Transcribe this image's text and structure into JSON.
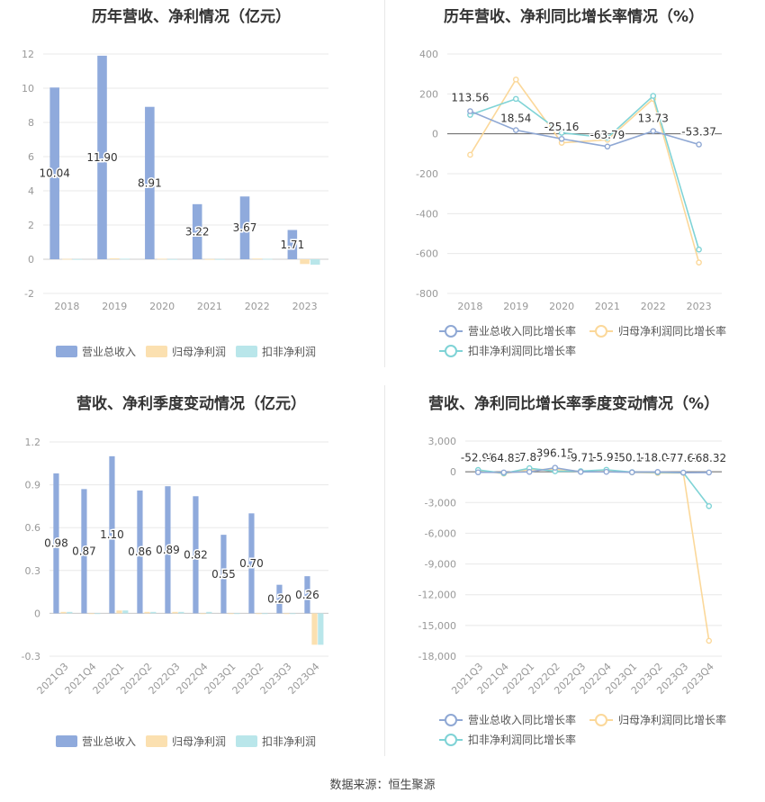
{
  "source_label": "数据来源：恒生聚源",
  "colors": {
    "revenue": "#8faadc",
    "net_profit": "#fbe0b0",
    "deducted_profit": "#b9e6ea",
    "revenue_line": "#8fa8d4",
    "net_profit_line": "#fbd89a",
    "deducted_line": "#7fd3d6",
    "axis_text": "#999999",
    "grid": "#e8e8e8"
  },
  "chart_data": [
    {
      "type": "bar",
      "title": "历年营收、净利情况（亿元）",
      "categories": [
        "2018",
        "2019",
        "2020",
        "2021",
        "2022",
        "2023"
      ],
      "ylim": [
        -2,
        12
      ],
      "yticks": [
        "12",
        "10",
        "8",
        "6",
        "4",
        "2",
        "0",
        "-2"
      ],
      "ytick_values": [
        12,
        10,
        8,
        6,
        4,
        2,
        0,
        -2
      ],
      "grid": true,
      "legend_position": "bottom",
      "series": [
        {
          "name": "营业总收入",
          "values": [
            10.04,
            11.9,
            8.91,
            3.22,
            3.67,
            1.71
          ],
          "labels": [
            "10.04",
            "11.90",
            "8.91",
            "3.22",
            "3.67",
            "1.71"
          ]
        },
        {
          "name": "归母净利润",
          "values": [
            0.02,
            0.05,
            0.03,
            0.01,
            0.04,
            -0.28
          ]
        },
        {
          "name": "扣非净利润",
          "values": [
            0.01,
            0.03,
            0.01,
            0.01,
            0.02,
            -0.32
          ]
        }
      ]
    },
    {
      "type": "line",
      "title": "历年营收、净利同比增长率情况（%）",
      "categories": [
        "2018",
        "2019",
        "2020",
        "2021",
        "2022",
        "2023"
      ],
      "ylim": [
        -800,
        400
      ],
      "yticks": [
        "400",
        "200",
        "0",
        "-200",
        "-400",
        "-600",
        "-800"
      ],
      "ytick_values": [
        400,
        200,
        0,
        -200,
        -400,
        -600,
        -800
      ],
      "grid": true,
      "legend_position": "bottom",
      "series": [
        {
          "name": "营业总收入同比增长率",
          "values": [
            113.56,
            18.54,
            -25.16,
            -63.79,
            13.73,
            -53.37
          ],
          "labels": [
            "113.56",
            "18.54",
            "-25.16",
            "-63.79",
            "13.73",
            "-53.37"
          ]
        },
        {
          "name": "归母净利润同比增长率",
          "values": [
            -105,
            272,
            -45,
            -30,
            175,
            -645
          ]
        },
        {
          "name": "扣非净利润同比增长率",
          "values": [
            95,
            175,
            5,
            -20,
            190,
            -580
          ]
        }
      ]
    },
    {
      "type": "bar",
      "title": "营收、净利季度变动情况（亿元）",
      "categories": [
        "2021Q3",
        "2021Q4",
        "2022Q1",
        "2022Q2",
        "2022Q3",
        "2022Q4",
        "2023Q1",
        "2023Q2",
        "2023Q3",
        "2023Q4"
      ],
      "ylim": [
        -0.3,
        1.2
      ],
      "yticks": [
        "1.2",
        "0.9",
        "0.6",
        "0.3",
        "0",
        "-0.3"
      ],
      "ytick_values": [
        1.2,
        0.9,
        0.6,
        0.3,
        0,
        -0.3
      ],
      "grid": true,
      "legend_position": "bottom",
      "series": [
        {
          "name": "营业总收入",
          "values": [
            0.98,
            0.87,
            1.1,
            0.86,
            0.89,
            0.82,
            0.55,
            0.7,
            0.2,
            0.26
          ],
          "labels": [
            "0.98",
            "0.87",
            "1.10",
            "0.86",
            "0.89",
            "0.82",
            "0.55",
            "0.70",
            "0.20",
            "0.26"
          ]
        },
        {
          "name": "归母净利润",
          "values": [
            0.01,
            -0.005,
            0.02,
            0.01,
            0.01,
            0.0,
            0.0,
            0.0,
            0.0,
            -0.22
          ]
        },
        {
          "name": "扣非净利润",
          "values": [
            0.01,
            -0.005,
            0.02,
            0.01,
            0.01,
            0.01,
            0.0,
            0.0,
            0.0,
            -0.22
          ]
        }
      ]
    },
    {
      "type": "line",
      "title": "营收、净利同比增长率季度变动情况（%）",
      "categories": [
        "2021Q3",
        "2021Q4",
        "2022Q1",
        "2022Q2",
        "2022Q3",
        "2022Q4",
        "2023Q1",
        "2023Q2",
        "2023Q3",
        "2023Q4"
      ],
      "ylim": [
        -18000,
        3000
      ],
      "yticks": [
        "3,000",
        "0",
        "-3,000",
        "-6,000",
        "-9,000",
        "-12,000",
        "-15,000",
        "-18,000"
      ],
      "ytick_values": [
        3000,
        0,
        -3000,
        -6000,
        -9000,
        -12000,
        -15000,
        -18000
      ],
      "grid": true,
      "legend_position": "bottom",
      "series": [
        {
          "name": "营业总收入同比增长率",
          "values": [
            -52.95,
            -64.83,
            -7.87,
            396.15,
            -9.71,
            -5.91,
            -50.17,
            -18.07,
            -77.61,
            -68.32
          ],
          "labels": [
            "-52.95",
            "-64.83",
            "-7.87",
            "396.15",
            "-9.71",
            "-5.91",
            "-50.17",
            "-18.07",
            "-77.61",
            "-68.32"
          ]
        },
        {
          "name": "归母净利润同比增长率",
          "values": [
            150,
            -180,
            200,
            250,
            30,
            100,
            -60,
            -120,
            -100,
            -16500
          ]
        },
        {
          "name": "扣非净利润同比增长率",
          "values": [
            180,
            -150,
            350,
            50,
            60,
            200,
            -40,
            -60,
            -90,
            -3350
          ]
        }
      ]
    }
  ]
}
